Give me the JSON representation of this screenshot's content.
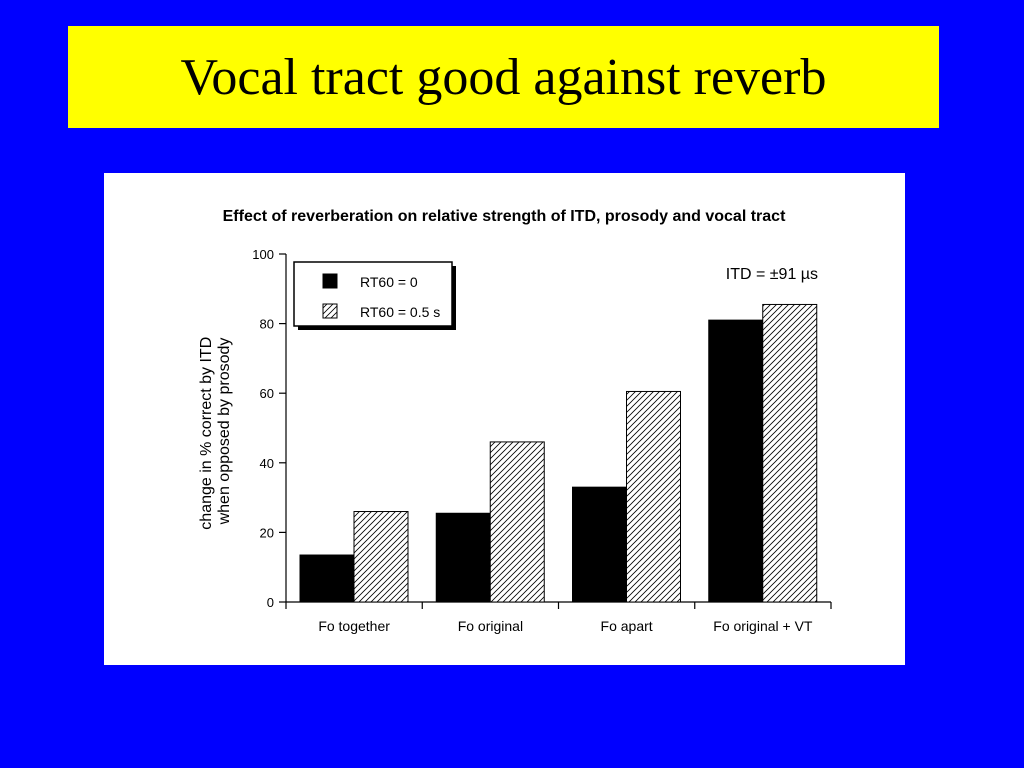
{
  "slide": {
    "title": "Vocal tract good against reverb"
  },
  "colors": {
    "background": "#0000ff",
    "title_box": "#ffff00",
    "panel": "#ffffff",
    "rt60_0_fill": "#000000",
    "rt60_05_fill": "hatched"
  },
  "chart_data": {
    "type": "bar",
    "title": "Effect of reverberation on relative strength of ITD, prosody and vocal tract",
    "ylabel_line1": "change in % correct by ITD",
    "ylabel_line2": "when opposed by prosody",
    "xlabel": "",
    "ylim": [
      0,
      100
    ],
    "yticks": [
      0,
      20,
      40,
      60,
      80,
      100
    ],
    "grid": false,
    "legend_position": "top-left",
    "annotation": "ITD = ±91 µs",
    "categories": [
      "Fo together",
      "Fo original",
      "Fo apart",
      "Fo original + VT"
    ],
    "series": [
      {
        "name": "RT60 = 0",
        "values": [
          13.5,
          25.5,
          33,
          81
        ]
      },
      {
        "name": "RT60 = 0.5 s",
        "values": [
          26,
          46,
          60.5,
          85.5
        ]
      }
    ]
  }
}
